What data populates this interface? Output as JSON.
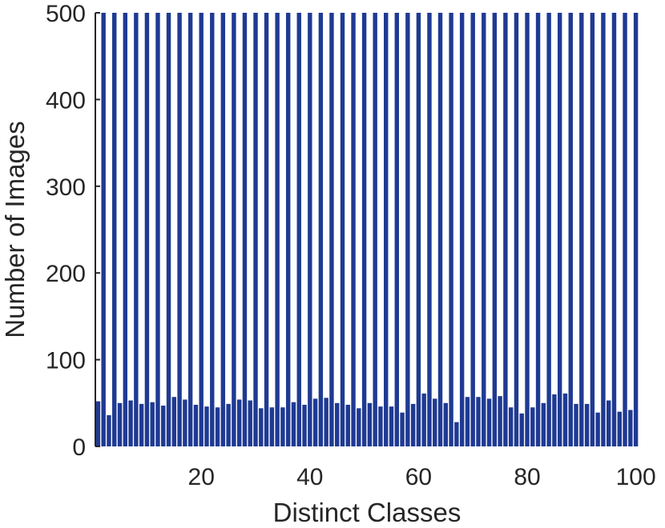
{
  "chart_data": {
    "type": "bar",
    "title": "",
    "xlabel": "Distinct Classes",
    "ylabel": "Number of Images",
    "xlim": [
      0.5,
      100.5
    ],
    "ylim": [
      0,
      500
    ],
    "xticks": [
      20,
      40,
      60,
      80,
      100
    ],
    "yticks": [
      0,
      100,
      200,
      300,
      400,
      500
    ],
    "grid": false,
    "bar_color": "#1f3a93",
    "x": [
      1,
      2,
      3,
      4,
      5,
      6,
      7,
      8,
      9,
      10,
      11,
      12,
      13,
      14,
      15,
      16,
      17,
      18,
      19,
      20,
      21,
      22,
      23,
      24,
      25,
      26,
      27,
      28,
      29,
      30,
      31,
      32,
      33,
      34,
      35,
      36,
      37,
      38,
      39,
      40,
      41,
      42,
      43,
      44,
      45,
      46,
      47,
      48,
      49,
      50,
      51,
      52,
      53,
      54,
      55,
      56,
      57,
      58,
      59,
      60,
      61,
      62,
      63,
      64,
      65,
      66,
      67,
      68,
      69,
      70,
      71,
      72,
      73,
      74,
      75,
      76,
      77,
      78,
      79,
      80,
      81,
      82,
      83,
      84,
      85,
      86,
      87,
      88,
      89,
      90,
      91,
      92,
      93,
      94,
      95,
      96,
      97,
      98,
      99,
      100
    ],
    "values": [
      52,
      500,
      36,
      500,
      50,
      500,
      53,
      500,
      49,
      500,
      51,
      500,
      47,
      500,
      57,
      500,
      54,
      500,
      48,
      500,
      46,
      500,
      45,
      500,
      49,
      500,
      54,
      500,
      53,
      500,
      44,
      500,
      45,
      500,
      45,
      500,
      51,
      500,
      48,
      500,
      55,
      500,
      56,
      500,
      50,
      500,
      48,
      500,
      44,
      500,
      50,
      500,
      46,
      500,
      46,
      500,
      39,
      500,
      49,
      500,
      61,
      500,
      55,
      500,
      50,
      500,
      28,
      500,
      57,
      500,
      57,
      500,
      55,
      500,
      58,
      500,
      45,
      500,
      38,
      500,
      45,
      500,
      50,
      500,
      60,
      500,
      61,
      500,
      49,
      500,
      49,
      500,
      39,
      500,
      53,
      500,
      40,
      500,
      42,
      500
    ]
  }
}
